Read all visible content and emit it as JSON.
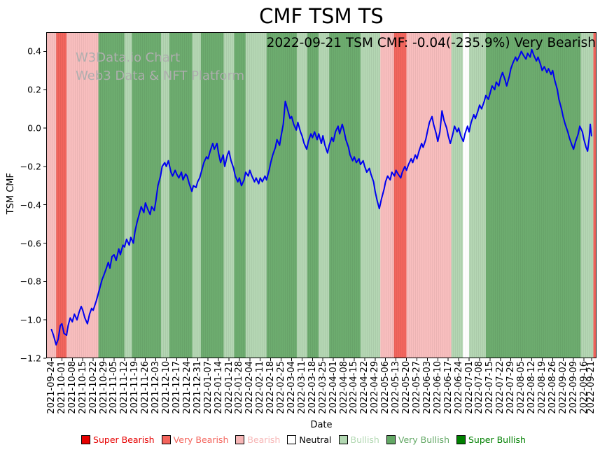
{
  "title": "CMF TSM TS",
  "annotation": "2022-09-21 TSM CMF: -0.04(-235.9%) Very Bearish",
  "watermark": {
    "line1": "W3Data.io Chart",
    "line2": "Web3 Data & NFT Platform"
  },
  "legend": [
    {
      "id": "super-bearish",
      "label": "Super Bearish",
      "color": "#e60000"
    },
    {
      "id": "very-bearish",
      "label": "Very Bearish",
      "color": "#f4645c"
    },
    {
      "id": "bearish",
      "label": "Bearish",
      "color": "#f7b6b6"
    },
    {
      "id": "neutral",
      "label": "Neutral",
      "color": "#ffffff",
      "text_color": "#000000"
    },
    {
      "id": "bullish",
      "label": "Bullish",
      "color": "#b2d8b2"
    },
    {
      "id": "very-bullish",
      "label": "Very Bullish",
      "color": "#63a865"
    },
    {
      "id": "super-bullish",
      "label": "Super Bullish",
      "color": "#008000"
    }
  ],
  "chart_data": {
    "type": "line",
    "title": "CMF TSM TS",
    "xlabel": "Date",
    "ylabel": "TSM CMF",
    "ylim": [
      -1.2,
      0.5
    ],
    "xlim_weeks": [
      -0.5,
      52.2
    ],
    "yticks": [
      0.4,
      0.2,
      0.0,
      -0.2,
      -0.4,
      -0.6,
      -0.8,
      -1.0,
      -1.2
    ],
    "x_tick_labels": [
      "2021-09-24",
      "2021-10-01",
      "2021-10-08",
      "2021-10-15",
      "2021-10-22",
      "2021-10-29",
      "2021-11-05",
      "2021-11-12",
      "2021-11-19",
      "2021-11-26",
      "2021-12-03",
      "2021-12-10",
      "2021-12-17",
      "2021-12-24",
      "2021-12-31",
      "2022-01-07",
      "2022-01-14",
      "2022-01-21",
      "2022-01-28",
      "2022-02-04",
      "2022-02-11",
      "2022-02-18",
      "2022-02-25",
      "2022-03-04",
      "2022-03-11",
      "2022-03-18",
      "2022-03-25",
      "2022-04-01",
      "2022-04-08",
      "2022-04-15",
      "2022-04-22",
      "2022-04-29",
      "2022-05-06",
      "2022-05-13",
      "2022-05-20",
      "2022-05-27",
      "2022-06-03",
      "2022-06-10",
      "2022-06-17",
      "2022-06-24",
      "2022-07-01",
      "2022-07-08",
      "2022-07-15",
      "2022-07-22",
      "2022-07-29",
      "2022-08-05",
      "2022-08-12",
      "2022-08-19",
      "2022-08-26",
      "2022-09-02",
      "2022-09-09",
      "2022-09-16",
      "2022-09-21"
    ],
    "final_tick_week": 51.714,
    "latest": {
      "date": "2022-09-21",
      "value": -0.04,
      "pct_change": -235.9,
      "sentiment": "Very Bearish"
    },
    "band_colors": {
      "super_bearish": "#e60000",
      "very_bearish": "#f2655d",
      "bearish": "#f8bebe",
      "neutral": "#ffffff",
      "bullish": "#b4d6b3",
      "very_bullish": "#6dac6f",
      "super_bullish": "#008000"
    },
    "bands": [
      [
        -0.5,
        0.45,
        "bearish"
      ],
      [
        0.45,
        1.45,
        "very_bearish"
      ],
      [
        1.45,
        4.5,
        "bearish"
      ],
      [
        4.5,
        7.0,
        "very_bullish"
      ],
      [
        7.0,
        7.7,
        "bullish"
      ],
      [
        7.7,
        10.5,
        "very_bullish"
      ],
      [
        10.5,
        11.3,
        "bullish"
      ],
      [
        11.3,
        13.5,
        "very_bullish"
      ],
      [
        13.5,
        14.3,
        "bullish"
      ],
      [
        14.3,
        16.5,
        "very_bullish"
      ],
      [
        16.5,
        17.5,
        "bullish"
      ],
      [
        17.5,
        18.6,
        "very_bullish"
      ],
      [
        18.6,
        20.6,
        "bullish"
      ],
      [
        20.6,
        23.5,
        "very_bullish"
      ],
      [
        23.5,
        24.5,
        "bullish"
      ],
      [
        24.5,
        25.6,
        "very_bullish"
      ],
      [
        25.6,
        26.6,
        "bullish"
      ],
      [
        26.6,
        29.6,
        "very_bullish"
      ],
      [
        29.6,
        31.5,
        "bullish"
      ],
      [
        31.5,
        32.8,
        "bearish"
      ],
      [
        32.8,
        34.0,
        "very_bearish"
      ],
      [
        34.0,
        38.3,
        "bearish"
      ],
      [
        38.3,
        39.4,
        "bullish"
      ],
      [
        39.4,
        40.0,
        "neutral"
      ],
      [
        40.0,
        41.6,
        "bullish"
      ],
      [
        41.6,
        50.7,
        "very_bullish"
      ],
      [
        50.7,
        51.9,
        "bullish"
      ],
      [
        51.9,
        52.2,
        "very_bearish"
      ]
    ],
    "line": {
      "name": "TSM CMF",
      "color": "#0000f0",
      "points": [
        [
          0,
          -1.05
        ],
        [
          0.2,
          -1.08
        ],
        [
          0.45,
          -1.13
        ],
        [
          0.65,
          -1.1
        ],
        [
          0.85,
          -1.03
        ],
        [
          1,
          -1.02
        ],
        [
          1.2,
          -1.07
        ],
        [
          1.45,
          -1.08
        ],
        [
          1.6,
          -1.03
        ],
        [
          1.8,
          -0.99
        ],
        [
          2,
          -1.01
        ],
        [
          2.2,
          -0.97
        ],
        [
          2.45,
          -1.0
        ],
        [
          2.65,
          -0.96
        ],
        [
          2.85,
          -0.93
        ],
        [
          3,
          -0.95
        ],
        [
          3.2,
          -0.99
        ],
        [
          3.45,
          -1.02
        ],
        [
          3.65,
          -0.97
        ],
        [
          3.85,
          -0.94
        ],
        [
          4,
          -0.95
        ],
        [
          4.3,
          -0.9
        ],
        [
          4.6,
          -0.84
        ],
        [
          4.85,
          -0.79
        ],
        [
          5,
          -0.77
        ],
        [
          5.2,
          -0.74
        ],
        [
          5.45,
          -0.7
        ],
        [
          5.6,
          -0.73
        ],
        [
          5.8,
          -0.67
        ],
        [
          6,
          -0.66
        ],
        [
          6.2,
          -0.69
        ],
        [
          6.45,
          -0.63
        ],
        [
          6.6,
          -0.66
        ],
        [
          6.85,
          -0.61
        ],
        [
          7,
          -0.62
        ],
        [
          7.2,
          -0.58
        ],
        [
          7.45,
          -0.61
        ],
        [
          7.6,
          -0.57
        ],
        [
          7.85,
          -0.6
        ],
        [
          8,
          -0.54
        ],
        [
          8.2,
          -0.49
        ],
        [
          8.45,
          -0.44
        ],
        [
          8.6,
          -0.41
        ],
        [
          8.85,
          -0.44
        ],
        [
          9,
          -0.39
        ],
        [
          9.2,
          -0.42
        ],
        [
          9.45,
          -0.45
        ],
        [
          9.6,
          -0.41
        ],
        [
          9.85,
          -0.43
        ],
        [
          10,
          -0.38
        ],
        [
          10.2,
          -0.3
        ],
        [
          10.45,
          -0.25
        ],
        [
          10.6,
          -0.2
        ],
        [
          10.85,
          -0.18
        ],
        [
          11,
          -0.2
        ],
        [
          11.2,
          -0.17
        ],
        [
          11.45,
          -0.23
        ],
        [
          11.6,
          -0.25
        ],
        [
          11.85,
          -0.22
        ],
        [
          12,
          -0.24
        ],
        [
          12.2,
          -0.26
        ],
        [
          12.45,
          -0.23
        ],
        [
          12.6,
          -0.27
        ],
        [
          12.85,
          -0.24
        ],
        [
          13,
          -0.25
        ],
        [
          13.2,
          -0.29
        ],
        [
          13.45,
          -0.33
        ],
        [
          13.6,
          -0.3
        ],
        [
          13.85,
          -0.31
        ],
        [
          14,
          -0.28
        ],
        [
          14.2,
          -0.26
        ],
        [
          14.45,
          -0.21
        ],
        [
          14.6,
          -0.18
        ],
        [
          14.85,
          -0.15
        ],
        [
          15,
          -0.16
        ],
        [
          15.2,
          -0.12
        ],
        [
          15.45,
          -0.08
        ],
        [
          15.6,
          -0.11
        ],
        [
          15.85,
          -0.08
        ],
        [
          16,
          -0.13
        ],
        [
          16.2,
          -0.18
        ],
        [
          16.45,
          -0.14
        ],
        [
          16.6,
          -0.2
        ],
        [
          16.85,
          -0.14
        ],
        [
          17,
          -0.12
        ],
        [
          17.2,
          -0.17
        ],
        [
          17.45,
          -0.21
        ],
        [
          17.6,
          -0.25
        ],
        [
          17.85,
          -0.28
        ],
        [
          18,
          -0.26
        ],
        [
          18.2,
          -0.3
        ],
        [
          18.45,
          -0.27
        ],
        [
          18.6,
          -0.23
        ],
        [
          18.85,
          -0.25
        ],
        [
          19,
          -0.22
        ],
        [
          19.2,
          -0.25
        ],
        [
          19.45,
          -0.28
        ],
        [
          19.6,
          -0.26
        ],
        [
          19.85,
          -0.29
        ],
        [
          20,
          -0.26
        ],
        [
          20.2,
          -0.28
        ],
        [
          20.45,
          -0.25
        ],
        [
          20.6,
          -0.27
        ],
        [
          20.85,
          -0.22
        ],
        [
          21,
          -0.18
        ],
        [
          21.2,
          -0.14
        ],
        [
          21.45,
          -0.1
        ],
        [
          21.6,
          -0.06
        ],
        [
          21.85,
          -0.09
        ],
        [
          22,
          -0.04
        ],
        [
          22.2,
          0.02
        ],
        [
          22.4,
          0.14
        ],
        [
          22.6,
          0.1
        ],
        [
          22.85,
          0.05
        ],
        [
          23,
          0.06
        ],
        [
          23.2,
          0.02
        ],
        [
          23.45,
          -0.01
        ],
        [
          23.6,
          0.03
        ],
        [
          23.85,
          -0.02
        ],
        [
          24,
          -0.04
        ],
        [
          24.2,
          -0.08
        ],
        [
          24.45,
          -0.11
        ],
        [
          24.6,
          -0.07
        ],
        [
          24.85,
          -0.03
        ],
        [
          25,
          -0.05
        ],
        [
          25.2,
          -0.02
        ],
        [
          25.45,
          -0.06
        ],
        [
          25.6,
          -0.03
        ],
        [
          25.85,
          -0.08
        ],
        [
          26,
          -0.04
        ],
        [
          26.2,
          -0.09
        ],
        [
          26.45,
          -0.13
        ],
        [
          26.6,
          -0.09
        ],
        [
          26.85,
          -0.05
        ],
        [
          27,
          -0.07
        ],
        [
          27.2,
          -0.02
        ],
        [
          27.45,
          0.01
        ],
        [
          27.6,
          -0.03
        ],
        [
          27.85,
          0.02
        ],
        [
          28,
          -0.01
        ],
        [
          28.2,
          -0.06
        ],
        [
          28.45,
          -0.1
        ],
        [
          28.6,
          -0.14
        ],
        [
          28.85,
          -0.17
        ],
        [
          29,
          -0.15
        ],
        [
          29.2,
          -0.18
        ],
        [
          29.45,
          -0.16
        ],
        [
          29.6,
          -0.19
        ],
        [
          29.85,
          -0.17
        ],
        [
          30,
          -0.2
        ],
        [
          30.2,
          -0.23
        ],
        [
          30.45,
          -0.21
        ],
        [
          30.6,
          -0.24
        ],
        [
          30.85,
          -0.28
        ],
        [
          31,
          -0.33
        ],
        [
          31.2,
          -0.38
        ],
        [
          31.4,
          -0.42
        ],
        [
          31.6,
          -0.37
        ],
        [
          31.85,
          -0.32
        ],
        [
          32,
          -0.28
        ],
        [
          32.2,
          -0.25
        ],
        [
          32.45,
          -0.27
        ],
        [
          32.6,
          -0.23
        ],
        [
          32.85,
          -0.25
        ],
        [
          33,
          -0.22
        ],
        [
          33.2,
          -0.24
        ],
        [
          33.45,
          -0.26
        ],
        [
          33.6,
          -0.23
        ],
        [
          33.85,
          -0.2
        ],
        [
          34,
          -0.22
        ],
        [
          34.2,
          -0.19
        ],
        [
          34.45,
          -0.16
        ],
        [
          34.6,
          -0.18
        ],
        [
          34.85,
          -0.14
        ],
        [
          35,
          -0.16
        ],
        [
          35.2,
          -0.12
        ],
        [
          35.45,
          -0.08
        ],
        [
          35.6,
          -0.1
        ],
        [
          35.85,
          -0.06
        ],
        [
          36,
          -0.02
        ],
        [
          36.2,
          0.03
        ],
        [
          36.45,
          0.06
        ],
        [
          36.6,
          0.02
        ],
        [
          36.85,
          -0.03
        ],
        [
          37,
          -0.07
        ],
        [
          37.2,
          -0.02
        ],
        [
          37.4,
          0.09
        ],
        [
          37.6,
          0.04
        ],
        [
          37.85,
          0
        ],
        [
          38,
          -0.04
        ],
        [
          38.2,
          -0.08
        ],
        [
          38.45,
          -0.03
        ],
        [
          38.6,
          0.01
        ],
        [
          38.85,
          -0.02
        ],
        [
          39,
          0
        ],
        [
          39.2,
          -0.04
        ],
        [
          39.45,
          -0.07
        ],
        [
          39.6,
          -0.03
        ],
        [
          39.85,
          0.01
        ],
        [
          40,
          -0.02
        ],
        [
          40.2,
          0.03
        ],
        [
          40.45,
          0.07
        ],
        [
          40.6,
          0.05
        ],
        [
          40.85,
          0.09
        ],
        [
          41,
          0.12
        ],
        [
          41.2,
          0.1
        ],
        [
          41.45,
          0.14
        ],
        [
          41.6,
          0.17
        ],
        [
          41.85,
          0.15
        ],
        [
          42,
          0.18
        ],
        [
          42.2,
          0.22
        ],
        [
          42.45,
          0.2
        ],
        [
          42.6,
          0.24
        ],
        [
          42.85,
          0.22
        ],
        [
          43,
          0.26
        ],
        [
          43.2,
          0.29
        ],
        [
          43.45,
          0.25
        ],
        [
          43.6,
          0.22
        ],
        [
          43.85,
          0.27
        ],
        [
          44,
          0.31
        ],
        [
          44.2,
          0.34
        ],
        [
          44.45,
          0.37
        ],
        [
          44.6,
          0.35
        ],
        [
          44.85,
          0.38
        ],
        [
          45,
          0.4
        ],
        [
          45.2,
          0.38
        ],
        [
          45.45,
          0.36
        ],
        [
          45.6,
          0.39
        ],
        [
          45.85,
          0.37
        ],
        [
          46,
          0.41
        ],
        [
          46.2,
          0.38
        ],
        [
          46.45,
          0.35
        ],
        [
          46.6,
          0.37
        ],
        [
          46.85,
          0.33
        ],
        [
          47,
          0.3
        ],
        [
          47.2,
          0.32
        ],
        [
          47.45,
          0.29
        ],
        [
          47.6,
          0.31
        ],
        [
          47.85,
          0.28
        ],
        [
          48,
          0.3
        ],
        [
          48.2,
          0.25
        ],
        [
          48.45,
          0.2
        ],
        [
          48.6,
          0.15
        ],
        [
          48.85,
          0.1
        ],
        [
          49,
          0.06
        ],
        [
          49.2,
          0.02
        ],
        [
          49.45,
          -0.02
        ],
        [
          49.6,
          -0.05
        ],
        [
          49.85,
          -0.09
        ],
        [
          50,
          -0.11
        ],
        [
          50.2,
          -0.07
        ],
        [
          50.45,
          -0.03
        ],
        [
          50.6,
          0.01
        ],
        [
          50.85,
          -0.02
        ],
        [
          51,
          -0.06
        ],
        [
          51.2,
          -0.1
        ],
        [
          51.35,
          -0.12
        ],
        [
          51.5,
          -0.05
        ],
        [
          51.6,
          0.02
        ],
        [
          51.714,
          -0.04
        ]
      ]
    }
  }
}
